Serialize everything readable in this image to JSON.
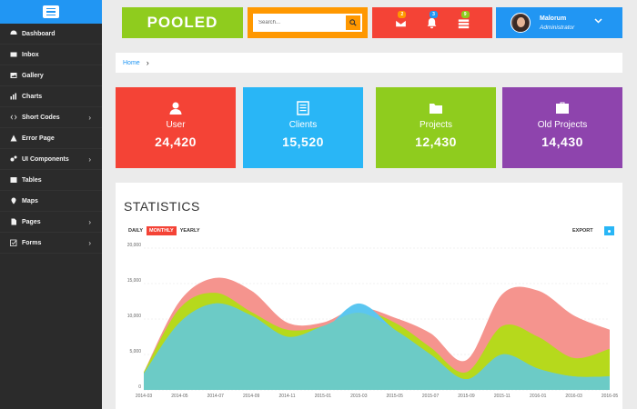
{
  "sidebar": {
    "toggle_icon": "hamburger-icon",
    "items": [
      {
        "label": "Dashboard",
        "icon": "dashboard-icon",
        "submenu": false
      },
      {
        "label": "Inbox",
        "icon": "envelope-icon",
        "submenu": false
      },
      {
        "label": "Gallery",
        "icon": "image-icon",
        "submenu": false
      },
      {
        "label": "Charts",
        "icon": "bar-chart-icon",
        "submenu": false
      },
      {
        "label": "Short Codes",
        "icon": "code-icon",
        "submenu": true
      },
      {
        "label": "Error Page",
        "icon": "warning-icon",
        "submenu": false
      },
      {
        "label": "UI Components",
        "icon": "gears-icon",
        "submenu": true
      },
      {
        "label": "Tables",
        "icon": "table-icon",
        "submenu": false
      },
      {
        "label": "Maps",
        "icon": "map-marker-icon",
        "submenu": false
      },
      {
        "label": "Pages",
        "icon": "file-icon",
        "submenu": true
      },
      {
        "label": "Forms",
        "icon": "checkbox-icon",
        "submenu": true
      }
    ]
  },
  "header": {
    "logo": "POOLED",
    "search_placeholder": "Search...",
    "notifications": [
      {
        "icon": "envelope-icon",
        "badge": "2",
        "badge_color": "#ff9800"
      },
      {
        "icon": "bell-icon",
        "badge": "3",
        "badge_color": "#2196f3"
      },
      {
        "icon": "tasks-icon",
        "badge": "9",
        "badge_color": "#8fcc1e"
      }
    ],
    "user": {
      "name": "Malorum",
      "role": "Administrator"
    }
  },
  "breadcrumb": {
    "home": "Home",
    "separator": "›"
  },
  "stat_cards": [
    {
      "label": "User",
      "value": "24,420",
      "color": "#f44336",
      "icon": "user-icon"
    },
    {
      "label": "Clients",
      "value": "15,520",
      "color": "#29b6f6",
      "icon": "document-icon"
    },
    {
      "label": "Projects",
      "value": "12,430",
      "color": "#8fcc1e",
      "icon": "folder-icon"
    },
    {
      "label": "Old Projects",
      "value": "14,430",
      "color": "#8e44ad",
      "icon": "briefcase-icon"
    }
  ],
  "statistics": {
    "title": "STATISTICS",
    "tabs": [
      "DAILY",
      "MONTHLY",
      "YEARLY"
    ],
    "active_tab": "MONTHLY",
    "export_label": "EXPORT"
  },
  "chart_data": {
    "type": "area",
    "stacked": false,
    "x": [
      "2014-03",
      "2014-05",
      "2014-07",
      "2014-09",
      "2014-11",
      "2015-01",
      "2015-03",
      "2015-05",
      "2015-07",
      "2015-09",
      "2015-11",
      "2016-01",
      "2016-03",
      "2016-05"
    ],
    "yticks": [
      "0",
      "5,000",
      "10,000",
      "15,000",
      "20,000"
    ],
    "ylim": [
      0,
      20000
    ],
    "grid": true,
    "series": [
      {
        "color": "#f5948e",
        "values": [
          2500,
          12500,
          15800,
          14000,
          9500,
          9500,
          11600,
          10200,
          8000,
          4200,
          13500,
          14000,
          10500,
          8500
        ]
      },
      {
        "color": "#b6d91c",
        "values": [
          2500,
          11500,
          13700,
          11000,
          8500,
          9000,
          11200,
          9500,
          6000,
          2500,
          9000,
          7500,
          4500,
          5800
        ]
      },
      {
        "color": "#5bc6f0",
        "values": [
          2300,
          9500,
          12200,
          10500,
          7500,
          8500,
          12200,
          8500,
          5000,
          1500,
          5000,
          3000,
          1900,
          1900
        ]
      },
      {
        "color": "#6ccbc6",
        "values": [
          2300,
          9500,
          12200,
          10500,
          7500,
          9000,
          10900,
          8500,
          5000,
          1500,
          5000,
          3000,
          1900,
          1900
        ]
      }
    ]
  }
}
